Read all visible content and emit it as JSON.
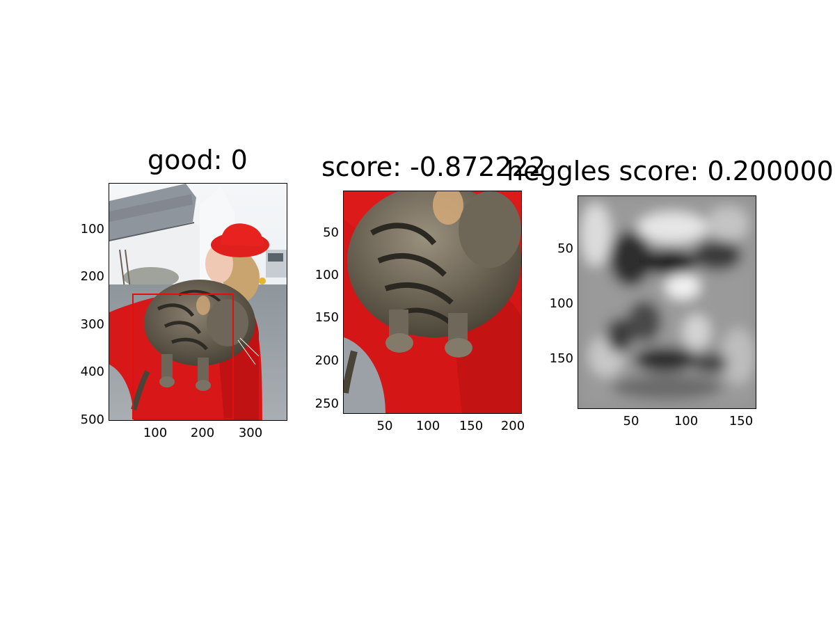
{
  "panels": [
    {
      "title": "good: 0",
      "yticks": [
        "100",
        "200",
        "300",
        "400",
        "500"
      ],
      "xticks": [
        "100",
        "200",
        "300"
      ],
      "image": "photo of a woman in a red hat and red fleece holding a tabby cat on her shoulder, with a house in the background",
      "box_color": "#e01010"
    },
    {
      "title": "score: -0.872222",
      "yticks": [
        "50",
        "100",
        "150",
        "200",
        "250"
      ],
      "xticks": [
        "50",
        "100",
        "150",
        "200"
      ],
      "image": "cropped close-up of the tabby cat resting on a red sleeve"
    },
    {
      "title": "heggles score: 0.200000",
      "yticks": [
        "50",
        "100",
        "150"
      ],
      "xticks": [
        "50",
        "100",
        "150"
      ],
      "image": "grayscale blurred feature map"
    }
  ]
}
